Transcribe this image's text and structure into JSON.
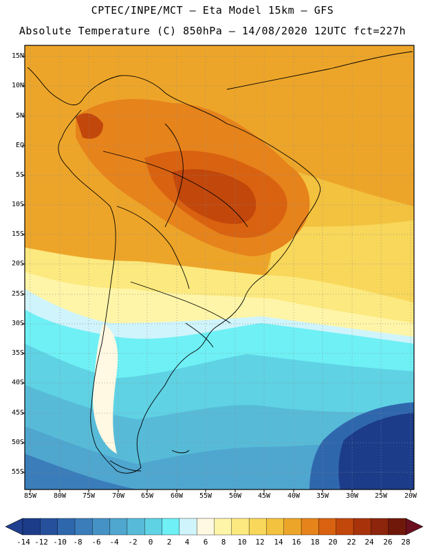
{
  "header": {
    "line1": "CPTEC/INPE/MCT –  Eta Model 15km – GFS",
    "line2": "Absolute Temperature (C) 850hPa – 14/08/2020 12UTC fct=227h"
  },
  "axes": {
    "lat_labels": [
      "15N",
      "10N",
      "5N",
      "EQ",
      "5S",
      "10S",
      "15S",
      "20S",
      "25S",
      "30S",
      "35S",
      "40S",
      "45S",
      "50S",
      "55S"
    ],
    "lon_labels": [
      "85W",
      "80W",
      "75W",
      "70W",
      "65W",
      "60W",
      "55W",
      "50W",
      "45W",
      "40W",
      "35W",
      "30W",
      "25W",
      "20W"
    ]
  },
  "colorbar": {
    "labels": [
      "-14",
      "-12",
      "-10",
      "-8",
      "-6",
      "-4",
      "-2",
      "0",
      "2",
      "4",
      "6",
      "8",
      "10",
      "12",
      "14",
      "16",
      "18",
      "20",
      "22",
      "24",
      "26",
      "28"
    ],
    "colors": [
      "#1c3c8a",
      "#26509c",
      "#2f67ad",
      "#3a7dba",
      "#4592c5",
      "#4fa6cf",
      "#57bbd8",
      "#5fd2e4",
      "#6ef0f5",
      "#cff4fb",
      "#fff8e2",
      "#fff5a8",
      "#fce97f",
      "#f8d75a",
      "#f3c23e",
      "#eda529",
      "#e6831b",
      "#d96210",
      "#c2470b",
      "#a8330a",
      "#8c250b",
      "#70180a"
    ],
    "left_arrow": "#203f90",
    "right_arrow": "#6a0f1e"
  }
}
